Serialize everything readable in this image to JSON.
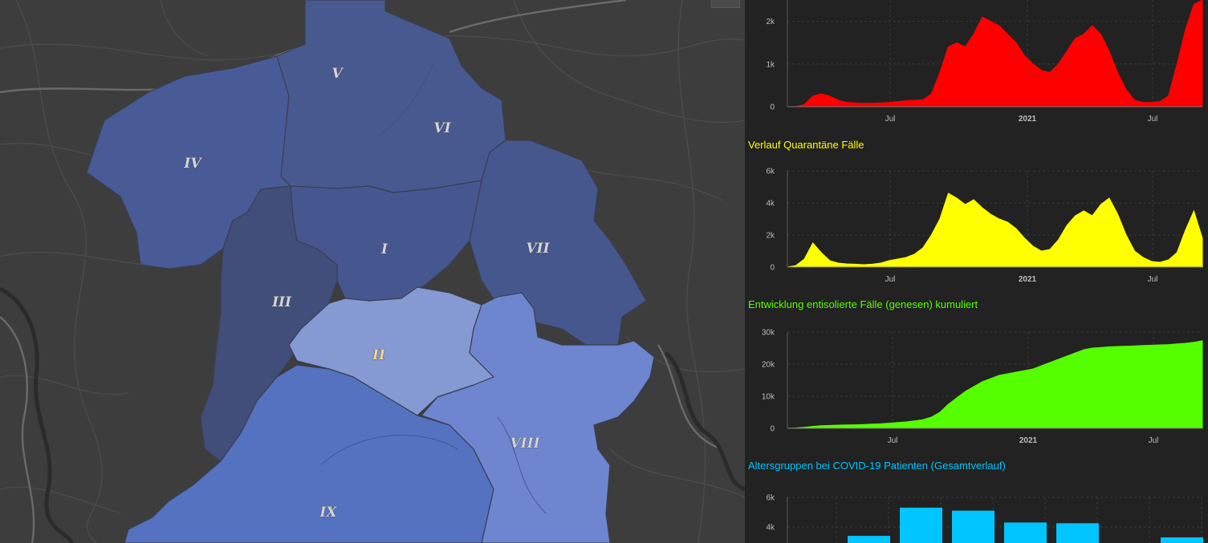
{
  "map": {
    "districts": [
      {
        "id": "V",
        "label": "V"
      },
      {
        "id": "VI",
        "label": "VI"
      },
      {
        "id": "IV",
        "label": "IV"
      },
      {
        "id": "I",
        "label": "I"
      },
      {
        "id": "VII",
        "label": "VII"
      },
      {
        "id": "III",
        "label": "III"
      },
      {
        "id": "II",
        "label": "II"
      },
      {
        "id": "VIII",
        "label": "VIII"
      },
      {
        "id": "IX",
        "label": "IX"
      }
    ]
  },
  "colors": {
    "infected": "#ff0000",
    "quarantine": "#ffff00",
    "recovered": "#55ff00",
    "age": "#00c5ff",
    "map_background": "#3d3d3d",
    "panel_background": "#222222"
  },
  "chart_data": [
    {
      "type": "area",
      "title": "",
      "x_ticks": [
        "Jul",
        "2021",
        "Jul"
      ],
      "y_ticks": [
        "0",
        "1k",
        "2k"
      ],
      "ylim": [
        0,
        2500
      ],
      "x_range": [
        "2020-03",
        "2021-09"
      ],
      "series": [
        {
          "values": [
            0,
            0,
            50,
            250,
            300,
            250,
            150,
            100,
            90,
            80,
            80,
            90,
            100,
            120,
            140,
            150,
            160,
            300,
            800,
            1400,
            1500,
            1400,
            1700,
            2100,
            2000,
            1900,
            1700,
            1500,
            1200,
            1000,
            850,
            800,
            1000,
            1300,
            1600,
            1700,
            1900,
            1700,
            1300,
            800,
            400,
            150,
            100,
            100,
            120,
            250,
            1000,
            1800,
            2400,
            2500
          ]
        }
      ]
    },
    {
      "type": "area",
      "title": "Verlauf Quarantäne Fälle",
      "x_ticks": [
        "Jul",
        "2021",
        "Jul"
      ],
      "y_ticks": [
        "0",
        "2k",
        "4k",
        "6k"
      ],
      "ylim": [
        0,
        6000
      ],
      "x_range": [
        "2020-03",
        "2021-09"
      ],
      "series": [
        {
          "values": [
            0,
            100,
            500,
            1500,
            900,
            400,
            250,
            200,
            180,
            150,
            180,
            250,
            400,
            500,
            600,
            800,
            1200,
            2000,
            3000,
            4600,
            4300,
            3900,
            4200,
            3700,
            3300,
            3000,
            2800,
            2400,
            1800,
            1300,
            1000,
            1100,
            1700,
            2600,
            3200,
            3500,
            3200,
            3900,
            4300,
            3300,
            2000,
            1000,
            600,
            350,
            300,
            450,
            900,
            2300,
            3500,
            1800
          ]
        }
      ]
    },
    {
      "type": "area",
      "title": "Entwicklung entisolierte Fälle (genesen) kumuliert",
      "x_ticks": [
        "Jul",
        "2021",
        "Jul"
      ],
      "y_ticks": [
        "0",
        "10k",
        "20k",
        "30k"
      ],
      "ylim": [
        0,
        30000
      ],
      "x_range": [
        "2020-03",
        "2021-09"
      ],
      "series": [
        {
          "values": [
            0,
            100,
            300,
            600,
            800,
            900,
            1000,
            1050,
            1100,
            1200,
            1300,
            1400,
            1600,
            1800,
            2000,
            2300,
            2700,
            3500,
            5000,
            7500,
            9500,
            11500,
            13000,
            14500,
            15500,
            16500,
            17000,
            17500,
            18000,
            18500,
            19500,
            20500,
            21500,
            22500,
            23500,
            24500,
            25000,
            25200,
            25400,
            25500,
            25600,
            25700,
            25800,
            25900,
            26000,
            26100,
            26300,
            26500,
            26800,
            27300
          ]
        }
      ]
    },
    {
      "type": "bar",
      "title": "Altersgruppen bei COVID-19 Patienten (Gesamtverlauf)",
      "y_ticks": [
        "4k",
        "6k"
      ],
      "ylim": [
        0,
        6000
      ],
      "values": [
        null,
        3400,
        5300,
        5100,
        4300,
        4250,
        null,
        3300
      ]
    }
  ]
}
